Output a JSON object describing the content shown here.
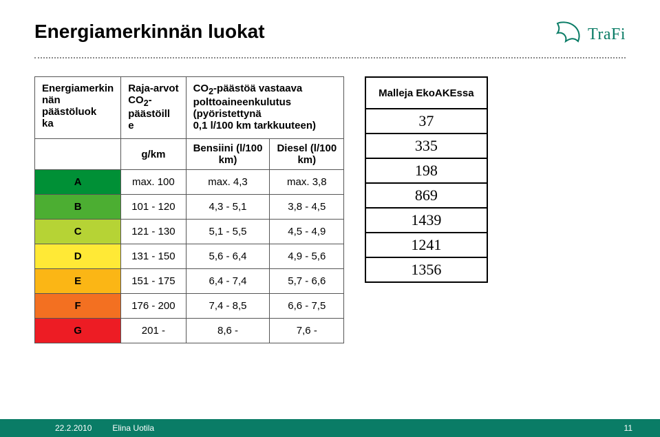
{
  "title": "Energiamerkinnän luokat",
  "logo": {
    "text": "TraFi",
    "icon_name": "trafi-bird-icon"
  },
  "main_table": {
    "col1_header": "Energiamerkinnän päästöluokka",
    "col2_header": "Raja-arvot CO₂-päästöille",
    "col3_header": "CO₂-päästöä vastaava polttoaineenkulutus (pyöristettynä 0,1 l/100 km tarkkuuteen)",
    "sub_col2": "g/km",
    "sub_col3a": "Bensiini (l/100 km)",
    "sub_col3b": "Diesel (l/100 km)",
    "rows": [
      {
        "cls": "A",
        "color": "#009036",
        "gkm": "max. 100",
        "petrol": "max. 4,3",
        "diesel": "max. 3,8"
      },
      {
        "cls": "B",
        "color": "#4cae32",
        "gkm": "101 - 120",
        "petrol": "4,3 - 5,1",
        "diesel": "3,8 - 4,5"
      },
      {
        "cls": "C",
        "color": "#b6d335",
        "gkm": "121 - 130",
        "petrol": "5,1 - 5,5",
        "diesel": "4,5 - 4,9"
      },
      {
        "cls": "D",
        "color": "#ffe936",
        "gkm": "131 - 150",
        "petrol": "5,6 - 6,4",
        "diesel": "4,9 - 5,6"
      },
      {
        "cls": "E",
        "color": "#fbb615",
        "gkm": "151 - 175",
        "petrol": "6,4 - 7,4",
        "diesel": "5,7 - 6,6"
      },
      {
        "cls": "F",
        "color": "#f37021",
        "gkm": "176 - 200",
        "petrol": "7,4 - 8,5",
        "diesel": "6,6 - 7,5"
      },
      {
        "cls": "G",
        "color": "#ed1c24",
        "gkm": "201 -",
        "petrol": "8,6 -",
        "diesel": "7,6 -"
      }
    ]
  },
  "side_table": {
    "header": "Malleja EkoAKEssa",
    "values": [
      "37",
      "335",
      "198",
      "869",
      "1439",
      "1241",
      "1356"
    ]
  },
  "footer": {
    "date": "22.2.2010",
    "author": "Elina Uotila",
    "page": "11"
  }
}
